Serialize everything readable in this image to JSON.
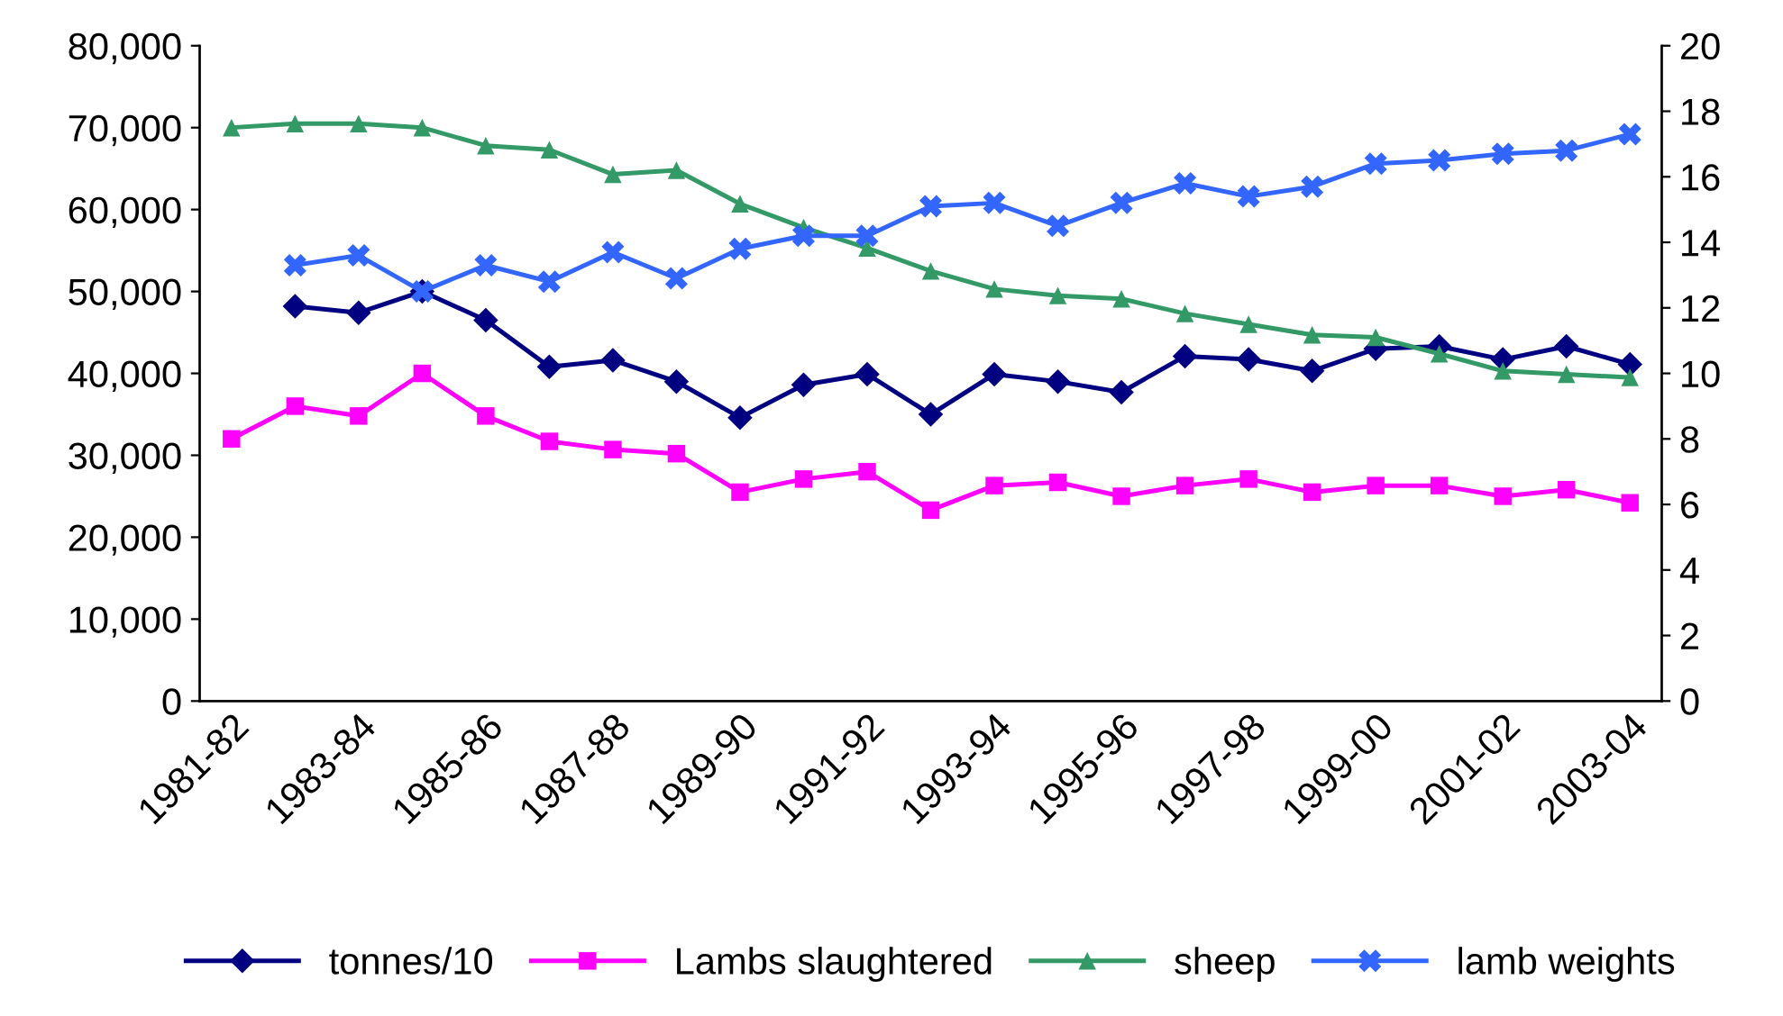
{
  "chart_data": {
    "type": "line",
    "categories": [
      "1981-82",
      null,
      "1983-84",
      null,
      "1985-86",
      null,
      "1987-88",
      null,
      "1989-90",
      null,
      "1991-92",
      null,
      "1993-94",
      null,
      "1995-96",
      null,
      "1997-98",
      null,
      "1999-00",
      null,
      "2001-02",
      null,
      "2003-04"
    ],
    "series": [
      {
        "name": "tonnes/10",
        "color": "#000080",
        "marker": "diamond",
        "values": [
          null,
          48200,
          47400,
          50000,
          46500,
          40800,
          41600,
          39000,
          34600,
          38600,
          39900,
          35000,
          39900,
          39000,
          37700,
          42100,
          41700,
          40300,
          43000,
          43300,
          41700,
          43300,
          41100
        ]
      },
      {
        "name": "Lambs slaughtered",
        "color": "#ff00ff",
        "marker": "square",
        "values": [
          32000,
          36000,
          34800,
          40000,
          34800,
          31700,
          30700,
          30200,
          25500,
          27100,
          28000,
          23300,
          26300,
          26700,
          25000,
          26300,
          27100,
          25500,
          26300,
          26300,
          25000,
          25800,
          24200
        ]
      },
      {
        "name": "sheep",
        "color": "#339966",
        "marker": "triangle",
        "values": [
          70000,
          70500,
          70500,
          70000,
          67800,
          67300,
          64300,
          64800,
          60700,
          57800,
          55300,
          52500,
          50300,
          49500,
          49100,
          47300,
          46000,
          44700,
          44400,
          42400,
          40300,
          39900,
          39500
        ]
      },
      {
        "name": "lamb weights",
        "color": "#3366ff",
        "marker": "cross",
        "axis": "y2",
        "values": [
          null,
          13.3,
          13.6,
          12.5,
          13.3,
          12.8,
          13.7,
          12.9,
          13.8,
          14.2,
          14.2,
          15.1,
          15.2,
          14.5,
          15.2,
          15.8,
          15.4,
          15.7,
          16.4,
          16.5,
          16.7,
          16.8,
          17.3
        ]
      }
    ],
    "ylim": [
      0,
      80000
    ],
    "yticks": [
      {
        "value": 0,
        "label": "0"
      },
      {
        "value": 10000,
        "label": "10,000"
      },
      {
        "value": 20000,
        "label": "20,000"
      },
      {
        "value": 30000,
        "label": "30,000"
      },
      {
        "value": 40000,
        "label": "40,000"
      },
      {
        "value": 50000,
        "label": "50,000"
      },
      {
        "value": 60000,
        "label": "60,000"
      },
      {
        "value": 70000,
        "label": "70,000"
      },
      {
        "value": 80000,
        "label": "80,000"
      }
    ],
    "y2lim": [
      0,
      20
    ],
    "y2ticks": [
      0,
      2,
      4,
      6,
      8,
      10,
      12,
      14,
      16,
      18,
      20
    ],
    "grid": false,
    "legend": "bottom"
  }
}
